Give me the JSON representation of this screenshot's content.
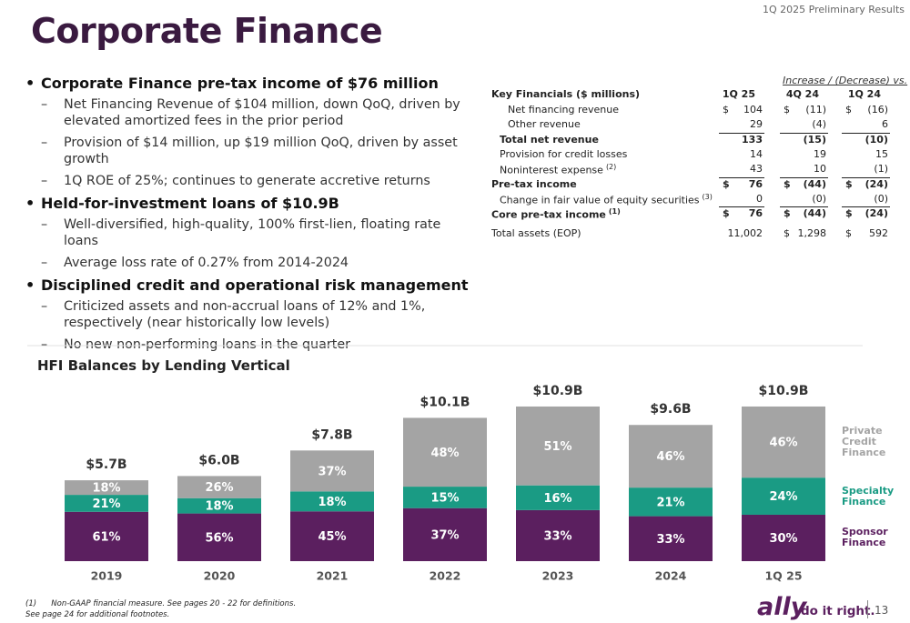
{
  "header": {
    "title": "Corporate Finance",
    "top_right": "1Q 2025 Preliminary Results"
  },
  "bullets": [
    {
      "level": 1,
      "text": "Corporate Finance pre-tax income of $76 million"
    },
    {
      "level": 2,
      "text": "Net Financing Revenue of $104 million, down QoQ, driven by elevated amortized fees in the prior period"
    },
    {
      "level": 2,
      "text": "Provision of $14 million, up $19 million QoQ, driven by asset growth"
    },
    {
      "level": 2,
      "text": "1Q ROE of 25%; continues to generate accretive returns"
    },
    {
      "level": 1,
      "text": "Held-for-investment loans of $10.9B"
    },
    {
      "level": 2,
      "text": "Well-diversified, high-quality, 100% first-lien, floating rate loans"
    },
    {
      "level": 2,
      "text": "Average loss rate of 0.27% from 2014-2024"
    },
    {
      "level": 1,
      "text": "Disciplined credit and operational risk management"
    },
    {
      "level": 2,
      "text": "Criticized assets and non-accrual loans of 12% and 1%, respectively (near historically low levels)"
    },
    {
      "level": 2,
      "text": "No new non-performing loans in the quarter"
    }
  ],
  "table": {
    "group_header": "Increase / (Decrease) vs.",
    "header": [
      "Key Financials ($ millions)",
      "1Q 25",
      "4Q 24",
      "1Q 24"
    ],
    "rows": [
      {
        "label": "Net financing revenue",
        "indent": 2,
        "cells": [
          [
            "$",
            "104"
          ],
          [
            "$",
            "(11)"
          ],
          [
            "$",
            "(16)"
          ]
        ]
      },
      {
        "label": "Other revenue",
        "indent": 2,
        "cells": [
          "29",
          "(4)",
          "6"
        ]
      },
      {
        "label": "Total net revenue",
        "indent": 1,
        "bold": true,
        "rule": true,
        "cells": [
          "133",
          "(15)",
          "(10)"
        ]
      },
      {
        "label": "Provision for credit losses",
        "indent": 1,
        "cells": [
          "14",
          "19",
          "15"
        ]
      },
      {
        "label": "Noninterest expense",
        "note": "(2)",
        "indent": 1,
        "cells": [
          "43",
          "10",
          "(1)"
        ]
      },
      {
        "label": "Pre-tax income",
        "indent": 0,
        "bold": true,
        "rule": true,
        "cells": [
          [
            "$",
            "76"
          ],
          [
            "$",
            "(44)"
          ],
          [
            "$",
            "(24)"
          ]
        ]
      },
      {
        "label": "Change in fair value of equity securities",
        "note": "(3)",
        "indent": 1,
        "cells": [
          "0",
          "(0)",
          "(0)"
        ]
      },
      {
        "label": "Core pre-tax income",
        "note": "(1)",
        "indent": 0,
        "bold": true,
        "rule": true,
        "cells": [
          [
            "$",
            "76"
          ],
          [
            "$",
            "(44)"
          ],
          [
            "$",
            "(24)"
          ]
        ]
      },
      {
        "label": "Total assets (EOP)",
        "indent": 0,
        "gap": true,
        "cells": [
          "11,002",
          [
            "$",
            "1,298"
          ],
          [
            "$",
            "592"
          ]
        ]
      }
    ]
  },
  "chart_data": {
    "type": "stacked_bar",
    "title": "HFI Balances by Lending Vertical",
    "categories": [
      "2019",
      "2020",
      "2021",
      "2022",
      "2023",
      "2024",
      "1Q 25"
    ],
    "totals": {
      "values": [
        5.7,
        6.0,
        7.8,
        10.1,
        10.9,
        9.6,
        10.9
      ],
      "value_labels": [
        "$5.7B",
        "$6.0B",
        "$7.8B",
        "$10.1B",
        "$10.9B",
        "$9.6B",
        "$10.9B"
      ]
    },
    "series": [
      {
        "name": "Sponsor Finance",
        "color": "#5b1f5f",
        "values": [
          61,
          56,
          45,
          37,
          33,
          33,
          30
        ],
        "value_labels": [
          "61%",
          "56%",
          "45%",
          "37%",
          "33%",
          "33%",
          "30%"
        ]
      },
      {
        "name": "Specialty Finance",
        "color": "#1a9b84",
        "values": [
          21,
          18,
          18,
          15,
          16,
          21,
          24
        ],
        "value_labels": [
          "21%",
          "18%",
          "18%",
          "15%",
          "16%",
          "21%",
          "24%"
        ]
      },
      {
        "name": "Private Credit Finance",
        "color": "#a4a4a4",
        "values": [
          18,
          26,
          37,
          48,
          51,
          46,
          46
        ],
        "value_labels": [
          "18%",
          "26%",
          "37%",
          "48%",
          "51%",
          "46%",
          "46%"
        ]
      }
    ]
  },
  "footnotes": {
    "mark": "(1)",
    "text": "Non-GAAP financial measure. See pages 20 - 22 for definitions.",
    "more": "See page 24 for additional footnotes."
  },
  "footer": {
    "logo": "ally",
    "tagline": "do it right.",
    "page": "13"
  }
}
